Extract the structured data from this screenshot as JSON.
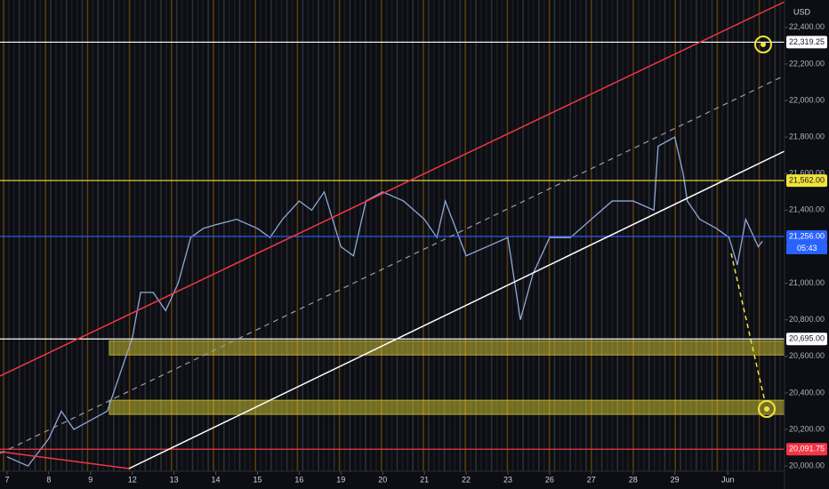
{
  "chart_data": {
    "type": "line",
    "currency_label": "USD",
    "xlim": [
      -0.17,
      18.63
    ],
    "ylim": [
      19874,
      22550
    ],
    "xticks": [
      {
        "value": 0,
        "label": "7"
      },
      {
        "value": 1,
        "label": "8"
      },
      {
        "value": 2,
        "label": "9"
      },
      {
        "value": 3,
        "label": "12"
      },
      {
        "value": 4,
        "label": "13"
      },
      {
        "value": 5,
        "label": "14"
      },
      {
        "value": 6,
        "label": "15"
      },
      {
        "value": 7,
        "label": "16"
      },
      {
        "value": 8,
        "label": "19"
      },
      {
        "value": 9,
        "label": "20"
      },
      {
        "value": 10,
        "label": "21"
      },
      {
        "value": 11,
        "label": "22"
      },
      {
        "value": 12,
        "label": "23"
      },
      {
        "value": 13,
        "label": "26"
      },
      {
        "value": 14,
        "label": "27"
      },
      {
        "value": 15,
        "label": "28"
      },
      {
        "value": 16,
        "label": "29"
      },
      {
        "value": 17.27,
        "label": "Jun"
      }
    ],
    "yticks": [
      {
        "value": 22400,
        "label": "22,400.00"
      },
      {
        "value": 22200,
        "label": "22,200.00"
      },
      {
        "value": 22000,
        "label": "22,000.00"
      },
      {
        "value": 21800,
        "label": "21,800.00"
      },
      {
        "value": 21600,
        "label": "21,600.00"
      },
      {
        "value": 21400,
        "label": "21,400.00"
      },
      {
        "value": 21000,
        "label": "21,000.00"
      },
      {
        "value": 20800,
        "label": "20,800.00"
      },
      {
        "value": 20600,
        "label": "20,600.00"
      },
      {
        "value": 20400,
        "label": "20,400.00"
      },
      {
        "value": 20200,
        "label": "20,200.00"
      },
      {
        "value": 20000,
        "label": "20,000.00"
      }
    ],
    "series": [
      {
        "color": "#8fa8d8",
        "x": [
          0,
          0.5,
          1,
          1.3,
          1.6,
          2,
          2.4,
          2.7,
          3,
          3.2,
          3.5,
          3.8,
          4.1,
          4.4,
          4.7,
          5,
          5.5,
          6,
          6.3,
          6.6,
          7,
          7.3,
          7.6,
          8,
          8.3,
          8.6,
          9,
          9.5,
          10,
          10.3,
          10.5,
          11,
          11.5,
          12,
          12.3,
          12.6,
          13,
          13.5,
          14,
          14.5,
          15,
          15.5,
          15.6,
          16,
          16.2,
          16.3,
          16.6,
          17,
          17.3,
          17.5,
          17.7,
          18,
          18.1
        ],
        "values": [
          20050,
          20000,
          20150,
          20300,
          20200,
          20250,
          20300,
          20500,
          20700,
          20950,
          20950,
          20850,
          21000,
          21250,
          21300,
          21320,
          21350,
          21300,
          21250,
          21350,
          21450,
          21400,
          21500,
          21200,
          21150,
          21450,
          21500,
          21450,
          21350,
          21250,
          21450,
          21150,
          21200,
          21250,
          20800,
          21050,
          21250,
          21250,
          21350,
          21450,
          21450,
          21400,
          21750,
          21800,
          21600,
          21450,
          21350,
          21300,
          21250,
          21100,
          21350,
          21200,
          21230
        ]
      }
    ],
    "levels": [
      {
        "value": 22319.25,
        "label": "22,319.25",
        "color": "#ffffff",
        "text_color": "#131722"
      },
      {
        "value": 21562,
        "label": "21,562.00",
        "color": "#f2e33a",
        "text_color": "#131722"
      },
      {
        "value": 21256,
        "label": "21,256.00",
        "color": "#2962ff",
        "text_color": "#ffffff"
      },
      {
        "value": 20695,
        "label": "20,695.00",
        "color": "#ffffff",
        "text_color": "#131722"
      },
      {
        "value": 20091.75,
        "label": "20,091.75",
        "color": "#f23645",
        "text_color": "#ffffff"
      }
    ],
    "zones": [
      [
        20607,
        20685
      ],
      [
        20282,
        20360
      ]
    ],
    "countdown": "05:43"
  }
}
